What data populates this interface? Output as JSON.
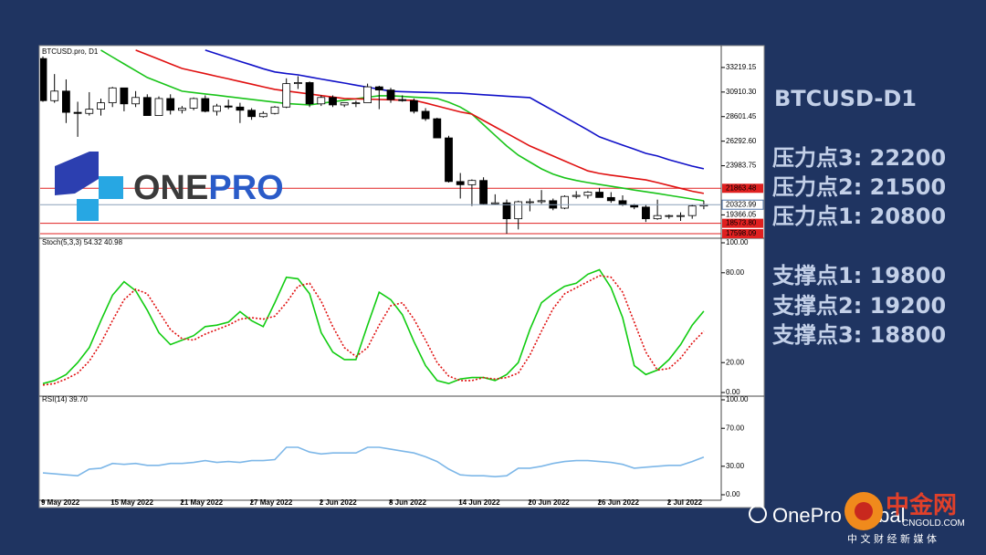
{
  "chart_data": [
    {
      "type": "candlestick",
      "title": "BTCUSD.pro, D1",
      "categories": [
        "9 May 2022",
        null,
        null,
        null,
        null,
        null,
        "15 May 2022",
        null,
        null,
        null,
        null,
        null,
        "21 May 2022",
        null,
        null,
        null,
        null,
        null,
        "27 May 2022",
        null,
        null,
        null,
        null,
        null,
        "2 Jun 2022",
        null,
        null,
        null,
        null,
        null,
        "8 Jun 2022",
        null,
        null,
        null,
        null,
        null,
        "14 Jun 2022",
        null,
        null,
        null,
        null,
        null,
        "20 Jun 2022",
        null,
        null,
        null,
        null,
        null,
        "26 Jun 2022",
        null,
        null,
        null,
        null,
        null,
        "2 Jul 2022",
        null,
        null,
        null
      ],
      "open": [
        34060,
        30100,
        31000,
        29000,
        28900,
        29300,
        29900,
        31300,
        29800,
        30400,
        28700,
        30300,
        29200,
        29400,
        30300,
        29100,
        29600,
        29500,
        29200,
        28600,
        28900,
        29500,
        31700,
        31800,
        29800,
        30400,
        29700,
        29900,
        29900,
        31400,
        31100,
        30200,
        30100,
        29100,
        28400,
        26600,
        22500,
        22200,
        22600,
        20400,
        20500,
        19000,
        20600,
        20600,
        20700,
        20000,
        21100,
        21200,
        21500,
        21000,
        20700,
        20300,
        20100,
        19000,
        19250,
        19300,
        19300,
        20200
      ],
      "high": [
        34250,
        32600,
        32100,
        30000,
        30900,
        30300,
        31400,
        31300,
        31000,
        30700,
        30500,
        30700,
        29600,
        30400,
        30600,
        29800,
        30200,
        29900,
        29400,
        29100,
        29600,
        32200,
        32400,
        31900,
        30600,
        30600,
        29900,
        30100,
        31700,
        31500,
        31300,
        30600,
        30300,
        29400,
        28500,
        26800,
        23300,
        22700,
        22900,
        21300,
        20800,
        20700,
        20900,
        21700,
        20900,
        21200,
        21600,
        21600,
        21900,
        21500,
        21200,
        20400,
        20300,
        20800,
        19400,
        19600,
        20300,
        20700
      ],
      "low": [
        30000,
        29900,
        28000,
        26700,
        28700,
        28700,
        29500,
        29100,
        29500,
        28700,
        28700,
        28800,
        28900,
        29200,
        29000,
        28700,
        29300,
        28000,
        28300,
        28500,
        28800,
        29400,
        31200,
        29500,
        29600,
        29500,
        29500,
        29500,
        29900,
        29300,
        29900,
        30000,
        28900,
        28200,
        26600,
        22400,
        20900,
        20200,
        20300,
        20300,
        17600,
        18000,
        19700,
        20400,
        19800,
        19900,
        20900,
        20900,
        21000,
        20500,
        20200,
        19900,
        18700,
        18900,
        19000,
        18800,
        19000,
        19900
      ],
      "close": [
        30100,
        31000,
        29000,
        28900,
        29300,
        29900,
        31300,
        29800,
        30400,
        28700,
        30300,
        29200,
        29400,
        30300,
        29100,
        29600,
        29500,
        29200,
        28600,
        28900,
        29500,
        31700,
        31800,
        29800,
        30400,
        29700,
        29900,
        29900,
        31400,
        31100,
        30200,
        30100,
        29100,
        28400,
        26600,
        22500,
        22200,
        22600,
        20400,
        20500,
        19000,
        20600,
        20600,
        20700,
        20000,
        21100,
        21200,
        21500,
        21000,
        20700,
        20300,
        20100,
        19000,
        19300,
        19300,
        19300,
        20200,
        20323.99
      ],
      "up_color": "#ffffff",
      "down_color": "#000000",
      "ylim": [
        17255,
        35100
      ],
      "yticks": [
        33219.15,
        {
          "value": 30910.3,
          "label": "30910.30"
        },
        28601.45,
        {
          "value": 26292.6,
          "label": "26292.60"
        },
        23983.75,
        19366.05
      ],
      "levels": [
        {
          "value": 21863.48,
          "color": "#e02020"
        },
        {
          "value": 18573.8,
          "label": "18573.80",
          "color": "#e02020"
        },
        {
          "value": 17598.09,
          "color": "#e02020"
        }
      ],
      "series": [
        {
          "color": "#19c419",
          "values": [
            null,
            null,
            null,
            null,
            null,
            34850,
            34200,
            33560,
            32920,
            32275,
            31850,
            31420,
            30990,
            30860,
            30730,
            30610,
            30480,
            30350,
            30220,
            30090,
            29960,
            29830,
            29760,
            29700,
            29850,
            30000,
            30140,
            30280,
            30420,
            30560,
            30560,
            30500,
            30430,
            30370,
            30300,
            29950,
            29500,
            28840,
            27840,
            26840,
            25840,
            24980,
            24330,
            23690,
            23200,
            22850,
            22600,
            22400,
            22220,
            22050,
            21880,
            21700,
            21540,
            21380,
            21200,
            21030,
            20860,
            20690
          ]
        },
        {
          "color": "#e01010",
          "values": [
            null,
            null,
            null,
            null,
            null,
            null,
            null,
            null,
            34850,
            34420,
            33990,
            33560,
            33130,
            32880,
            32640,
            32390,
            32150,
            31900,
            31650,
            31400,
            31160,
            31010,
            30870,
            30730,
            30580,
            30440,
            30300,
            30270,
            30240,
            30210,
            30180,
            30150,
            30130,
            29880,
            29600,
            29320,
            29040,
            28840,
            28240,
            27640,
            27040,
            26440,
            25840,
            25370,
            24900,
            24430,
            23960,
            23500,
            23260,
            23100,
            22950,
            22800,
            22650,
            22400,
            22130,
            21860,
            21590,
            21380
          ]
        },
        {
          "color": "#1010c8",
          "values": [
            null,
            null,
            null,
            null,
            null,
            null,
            null,
            null,
            null,
            null,
            null,
            null,
            null,
            null,
            34850,
            34500,
            34150,
            33800,
            33450,
            33100,
            32800,
            32650,
            32530,
            32330,
            32130,
            31940,
            31750,
            31560,
            31370,
            31180,
            30990,
            30950,
            30910,
            30880,
            30850,
            30830,
            30800,
            30730,
            30660,
            30590,
            30520,
            30450,
            30390,
            29780,
            29170,
            28560,
            27950,
            27340,
            26700,
            26310,
            25920,
            25540,
            25150,
            24900,
            24550,
            24250,
            23950,
            23700
          ]
        }
      ]
    },
    {
      "type": "line",
      "title": "Stoch(5,3,3) 54.32 40.98",
      "ylim": [
        0,
        100
      ],
      "yticks": [
        {
          "value": 100,
          "label": "100.00"
        },
        {
          "value": 80,
          "label": "80.00"
        },
        {
          "value": 20,
          "label": "20.00"
        },
        {
          "value": 0,
          "label": "0.00"
        }
      ],
      "series": [
        {
          "color": "#11cc11",
          "values": [
            6,
            8,
            12,
            20,
            30,
            48,
            65,
            74,
            68,
            55,
            40,
            32,
            35,
            38,
            44,
            45,
            47,
            54,
            48,
            44,
            60,
            77,
            76,
            66,
            40,
            27,
            22,
            22,
            45,
            67,
            62,
            52,
            34,
            18,
            8,
            6,
            9,
            10,
            10,
            8,
            12,
            20,
            42,
            60,
            66,
            71,
            73,
            79,
            82,
            70,
            50,
            18,
            12,
            15,
            22,
            32,
            45,
            54.32
          ]
        },
        {
          "color": "#e01010",
          "dashed": true,
          "values": [
            5,
            6,
            9,
            13,
            21,
            33,
            48,
            62,
            69,
            66,
            54,
            42,
            36,
            35,
            39,
            42,
            45,
            49,
            50,
            49,
            51,
            60,
            71,
            73,
            61,
            44,
            30,
            24,
            30,
            45,
            58,
            60,
            49,
            35,
            20,
            11,
            8,
            8,
            10,
            9,
            10,
            13,
            25,
            41,
            56,
            66,
            70,
            74,
            78,
            77,
            67,
            47,
            27,
            15,
            16,
            23,
            33,
            40.98
          ]
        }
      ]
    },
    {
      "type": "line",
      "title": "RSI(14) 39.70",
      "ylim": [
        0,
        100
      ],
      "yticks": [
        {
          "value": 100,
          "label": "100.00"
        },
        {
          "value": 70,
          "label": "70.00"
        },
        {
          "value": 30,
          "label": "30.00"
        },
        {
          "value": 0,
          "label": "0.00"
        }
      ],
      "series": [
        {
          "color": "#7db7e8",
          "values": [
            23,
            22,
            21,
            20,
            27,
            28,
            33,
            32,
            33,
            31,
            31,
            33,
            33,
            34,
            36,
            34,
            35,
            34,
            36,
            36,
            37,
            50,
            50,
            45,
            43,
            44,
            44,
            44,
            50,
            50,
            48,
            46,
            44,
            40,
            35,
            27,
            21,
            20,
            20,
            19,
            20,
            28,
            28,
            30,
            33,
            35,
            36,
            36,
            35,
            34,
            32,
            28,
            29,
            30,
            31,
            31,
            35,
            39.7
          ]
        }
      ]
    }
  ],
  "logo": {
    "part1": "ONE",
    "part2": "PRO"
  },
  "sidebar": {
    "title": "BTCUSD-D1",
    "resistance": [
      "压力点3: 22200",
      "压力点2: 21500",
      "压力点1: 20800"
    ],
    "support": [
      "支撑点1: 19800",
      "支撑点2: 19200",
      "支撑点3: 18800"
    ]
  },
  "watermark": {
    "brand": "OnePro Global",
    "site": "中金网",
    "domain": "CNGOLD.COM",
    "tagline": "中 文 财 经 新 媒 体"
  }
}
